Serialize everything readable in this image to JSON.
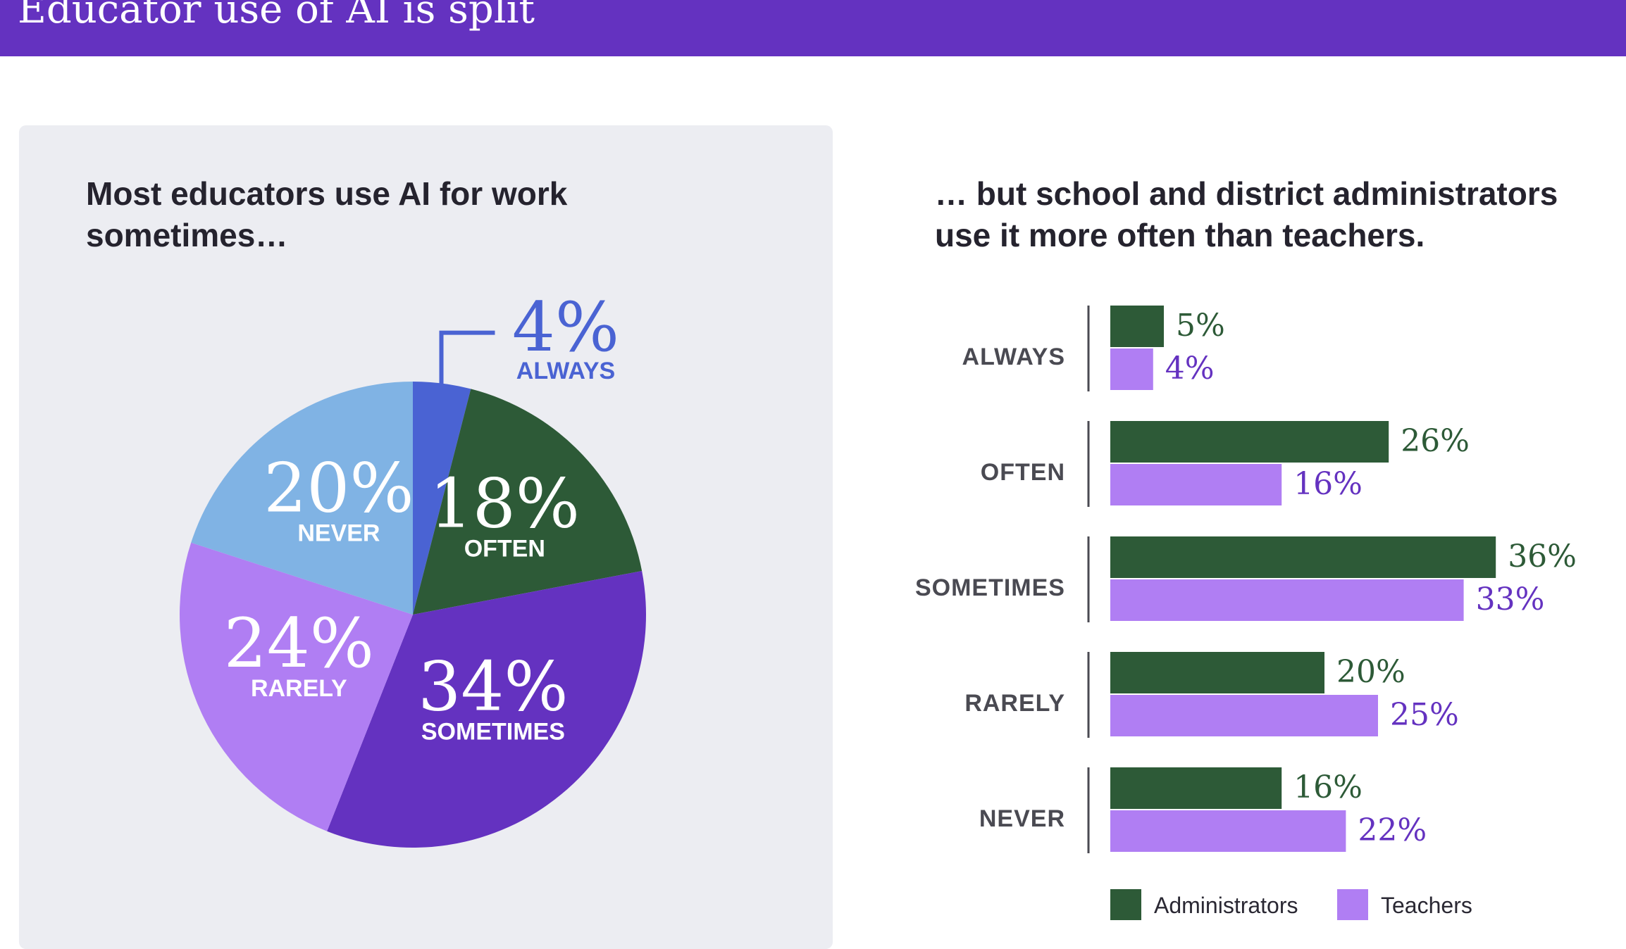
{
  "header": {
    "title": "Educator use of AI is split"
  },
  "left_panel": {
    "heading": "Most educators use AI for work sometimes…"
  },
  "right_panel": {
    "heading": "… but school and district administrators use it more often than teachers."
  },
  "chart_data": [
    {
      "type": "pie",
      "title": "Most educators use AI for work sometimes…",
      "slices": [
        {
          "label": "ALWAYS",
          "value": 4,
          "value_label": "4%",
          "color": "#4a63d3",
          "text_color": "#4a63d3"
        },
        {
          "label": "OFTEN",
          "value": 18,
          "value_label": "18%",
          "color": "#2d5a37",
          "text_color": "#ffffff"
        },
        {
          "label": "SOMETIMES",
          "value": 34,
          "value_label": "34%",
          "color": "#6432c0",
          "text_color": "#ffffff"
        },
        {
          "label": "RARELY",
          "value": 24,
          "value_label": "24%",
          "color": "#b07ef3",
          "text_color": "#ffffff"
        },
        {
          "label": "NEVER",
          "value": 20,
          "value_label": "20%",
          "color": "#80b3e4",
          "text_color": "#ffffff"
        }
      ]
    },
    {
      "type": "bar",
      "orientation": "horizontal",
      "title": "… but school and district administrators use it more often than teachers.",
      "categories": [
        "ALWAYS",
        "OFTEN",
        "SOMETIMES",
        "RARELY",
        "NEVER"
      ],
      "series": [
        {
          "name": "Administrators",
          "values": [
            5,
            26,
            36,
            20,
            16
          ],
          "labels": [
            "5%",
            "26%",
            "36%",
            "20%",
            "16%"
          ],
          "color": "#2d5a37",
          "label_color": "#2d5a37"
        },
        {
          "name": "Teachers",
          "values": [
            4,
            16,
            33,
            25,
            22
          ],
          "labels": [
            "4%",
            "16%",
            "33%",
            "25%",
            "22%"
          ],
          "color": "#b07ef3",
          "label_color": "#6432c0"
        }
      ],
      "legend_position": "bottom"
    }
  ]
}
